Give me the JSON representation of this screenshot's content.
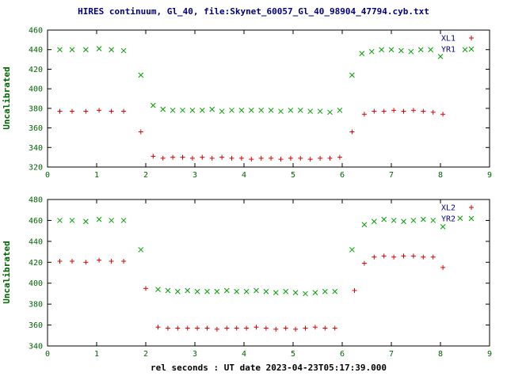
{
  "title": "HIRES continuum, Gl_40, file:Skynet_60057_Gl_40_98904_47794.cyb.txt",
  "xlabel": "rel seconds : UT date 2023-04-23T05:17:39.000",
  "colors": {
    "title": "#000080",
    "axis_text": "#006400",
    "xlabel_text": "#000000",
    "legend_text": "#000080",
    "frame": "#000000",
    "red": "#dd0000",
    "green": "#00a000",
    "background": "#ffffff"
  },
  "chart_data": [
    {
      "type": "scatter",
      "panel": "top",
      "ylabel": "Uncalibrated",
      "xlim": [
        0,
        9
      ],
      "ylim": [
        320,
        460
      ],
      "xticks": [
        0,
        1,
        2,
        3,
        4,
        5,
        6,
        7,
        8,
        9
      ],
      "yticks": [
        320,
        340,
        360,
        380,
        400,
        420,
        440,
        460
      ],
      "grid": false,
      "legend_position": "top-right",
      "series": [
        {
          "name": "XL1",
          "marker": "plus",
          "color": "#dd0000",
          "points": [
            [
              0.25,
              377
            ],
            [
              0.5,
              377
            ],
            [
              0.78,
              377
            ],
            [
              1.05,
              378
            ],
            [
              1.3,
              377
            ],
            [
              1.55,
              377
            ],
            [
              1.9,
              356
            ],
            [
              2.15,
              331
            ],
            [
              2.35,
              329
            ],
            [
              2.55,
              330
            ],
            [
              2.75,
              330
            ],
            [
              2.95,
              329
            ],
            [
              3.15,
              330
            ],
            [
              3.35,
              329
            ],
            [
              3.55,
              330
            ],
            [
              3.75,
              329
            ],
            [
              3.95,
              329
            ],
            [
              4.15,
              328
            ],
            [
              4.35,
              329
            ],
            [
              4.55,
              329
            ],
            [
              4.75,
              328
            ],
            [
              4.95,
              329
            ],
            [
              5.15,
              329
            ],
            [
              5.35,
              328
            ],
            [
              5.55,
              329
            ],
            [
              5.75,
              329
            ],
            [
              5.95,
              330
            ],
            [
              6.2,
              356
            ],
            [
              6.45,
              374
            ],
            [
              6.65,
              377
            ],
            [
              6.85,
              377
            ],
            [
              7.05,
              378
            ],
            [
              7.25,
              377
            ],
            [
              7.45,
              378
            ],
            [
              7.65,
              377
            ],
            [
              7.85,
              376
            ],
            [
              8.05,
              374
            ]
          ]
        },
        {
          "name": "YR1",
          "marker": "cross",
          "color": "#00a000",
          "points": [
            [
              0.25,
              440
            ],
            [
              0.5,
              440
            ],
            [
              0.78,
              440
            ],
            [
              1.05,
              441
            ],
            [
              1.3,
              440
            ],
            [
              1.55,
              439
            ],
            [
              1.9,
              414
            ],
            [
              2.15,
              383
            ],
            [
              2.35,
              379
            ],
            [
              2.55,
              378
            ],
            [
              2.75,
              378
            ],
            [
              2.95,
              378
            ],
            [
              3.15,
              378
            ],
            [
              3.35,
              379
            ],
            [
              3.55,
              377
            ],
            [
              3.75,
              378
            ],
            [
              3.95,
              378
            ],
            [
              4.15,
              378
            ],
            [
              4.35,
              378
            ],
            [
              4.55,
              378
            ],
            [
              4.75,
              377
            ],
            [
              4.95,
              378
            ],
            [
              5.15,
              378
            ],
            [
              5.35,
              377
            ],
            [
              5.55,
              377
            ],
            [
              5.75,
              376
            ],
            [
              5.95,
              378
            ],
            [
              6.2,
              414
            ],
            [
              6.4,
              436
            ],
            [
              6.6,
              438
            ],
            [
              6.8,
              440
            ],
            [
              7.0,
              440
            ],
            [
              7.2,
              439
            ],
            [
              7.4,
              438
            ],
            [
              7.6,
              440
            ],
            [
              7.8,
              440
            ],
            [
              8.0,
              433
            ],
            [
              8.5,
              440
            ]
          ]
        }
      ]
    },
    {
      "type": "scatter",
      "panel": "bottom",
      "ylabel": "Uncalibrated",
      "xlim": [
        0,
        9
      ],
      "ylim": [
        340,
        480
      ],
      "xticks": [
        0,
        1,
        2,
        3,
        4,
        5,
        6,
        7,
        8,
        9
      ],
      "yticks": [
        340,
        360,
        380,
        400,
        420,
        440,
        460,
        480
      ],
      "grid": false,
      "legend_position": "top-right",
      "series": [
        {
          "name": "XL2",
          "marker": "plus",
          "color": "#dd0000",
          "points": [
            [
              0.25,
              421
            ],
            [
              0.5,
              421
            ],
            [
              0.78,
              420
            ],
            [
              1.05,
              422
            ],
            [
              1.3,
              421
            ],
            [
              1.55,
              421
            ],
            [
              2.0,
              395
            ],
            [
              2.25,
              358
            ],
            [
              2.45,
              357
            ],
            [
              2.65,
              357
            ],
            [
              2.85,
              357
            ],
            [
              3.05,
              357
            ],
            [
              3.25,
              357
            ],
            [
              3.45,
              356
            ],
            [
              3.65,
              357
            ],
            [
              3.85,
              357
            ],
            [
              4.05,
              357
            ],
            [
              4.25,
              358
            ],
            [
              4.45,
              357
            ],
            [
              4.65,
              356
            ],
            [
              4.85,
              357
            ],
            [
              5.05,
              356
            ],
            [
              5.25,
              357
            ],
            [
              5.45,
              358
            ],
            [
              5.65,
              357
            ],
            [
              5.85,
              357
            ],
            [
              6.25,
              393
            ],
            [
              6.45,
              419
            ],
            [
              6.65,
              425
            ],
            [
              6.85,
              426
            ],
            [
              7.05,
              425
            ],
            [
              7.25,
              426
            ],
            [
              7.45,
              426
            ],
            [
              7.65,
              425
            ],
            [
              7.85,
              425
            ],
            [
              8.05,
              415
            ]
          ]
        },
        {
          "name": "YR2",
          "marker": "cross",
          "color": "#00a000",
          "points": [
            [
              0.25,
              460
            ],
            [
              0.5,
              460
            ],
            [
              0.78,
              459
            ],
            [
              1.05,
              461
            ],
            [
              1.3,
              460
            ],
            [
              1.55,
              460
            ],
            [
              1.9,
              432
            ],
            [
              2.25,
              394
            ],
            [
              2.45,
              393
            ],
            [
              2.65,
              392
            ],
            [
              2.85,
              393
            ],
            [
              3.05,
              392
            ],
            [
              3.25,
              392
            ],
            [
              3.45,
              392
            ],
            [
              3.65,
              393
            ],
            [
              3.85,
              392
            ],
            [
              4.05,
              392
            ],
            [
              4.25,
              393
            ],
            [
              4.45,
              392
            ],
            [
              4.65,
              391
            ],
            [
              4.85,
              392
            ],
            [
              5.05,
              391
            ],
            [
              5.25,
              390
            ],
            [
              5.45,
              391
            ],
            [
              5.65,
              392
            ],
            [
              5.85,
              392
            ],
            [
              6.2,
              432
            ],
            [
              6.45,
              456
            ],
            [
              6.65,
              459
            ],
            [
              6.85,
              461
            ],
            [
              7.05,
              460
            ],
            [
              7.25,
              459
            ],
            [
              7.45,
              460
            ],
            [
              7.65,
              461
            ],
            [
              7.85,
              460
            ],
            [
              8.05,
              454
            ],
            [
              8.4,
              462
            ]
          ]
        }
      ]
    }
  ]
}
